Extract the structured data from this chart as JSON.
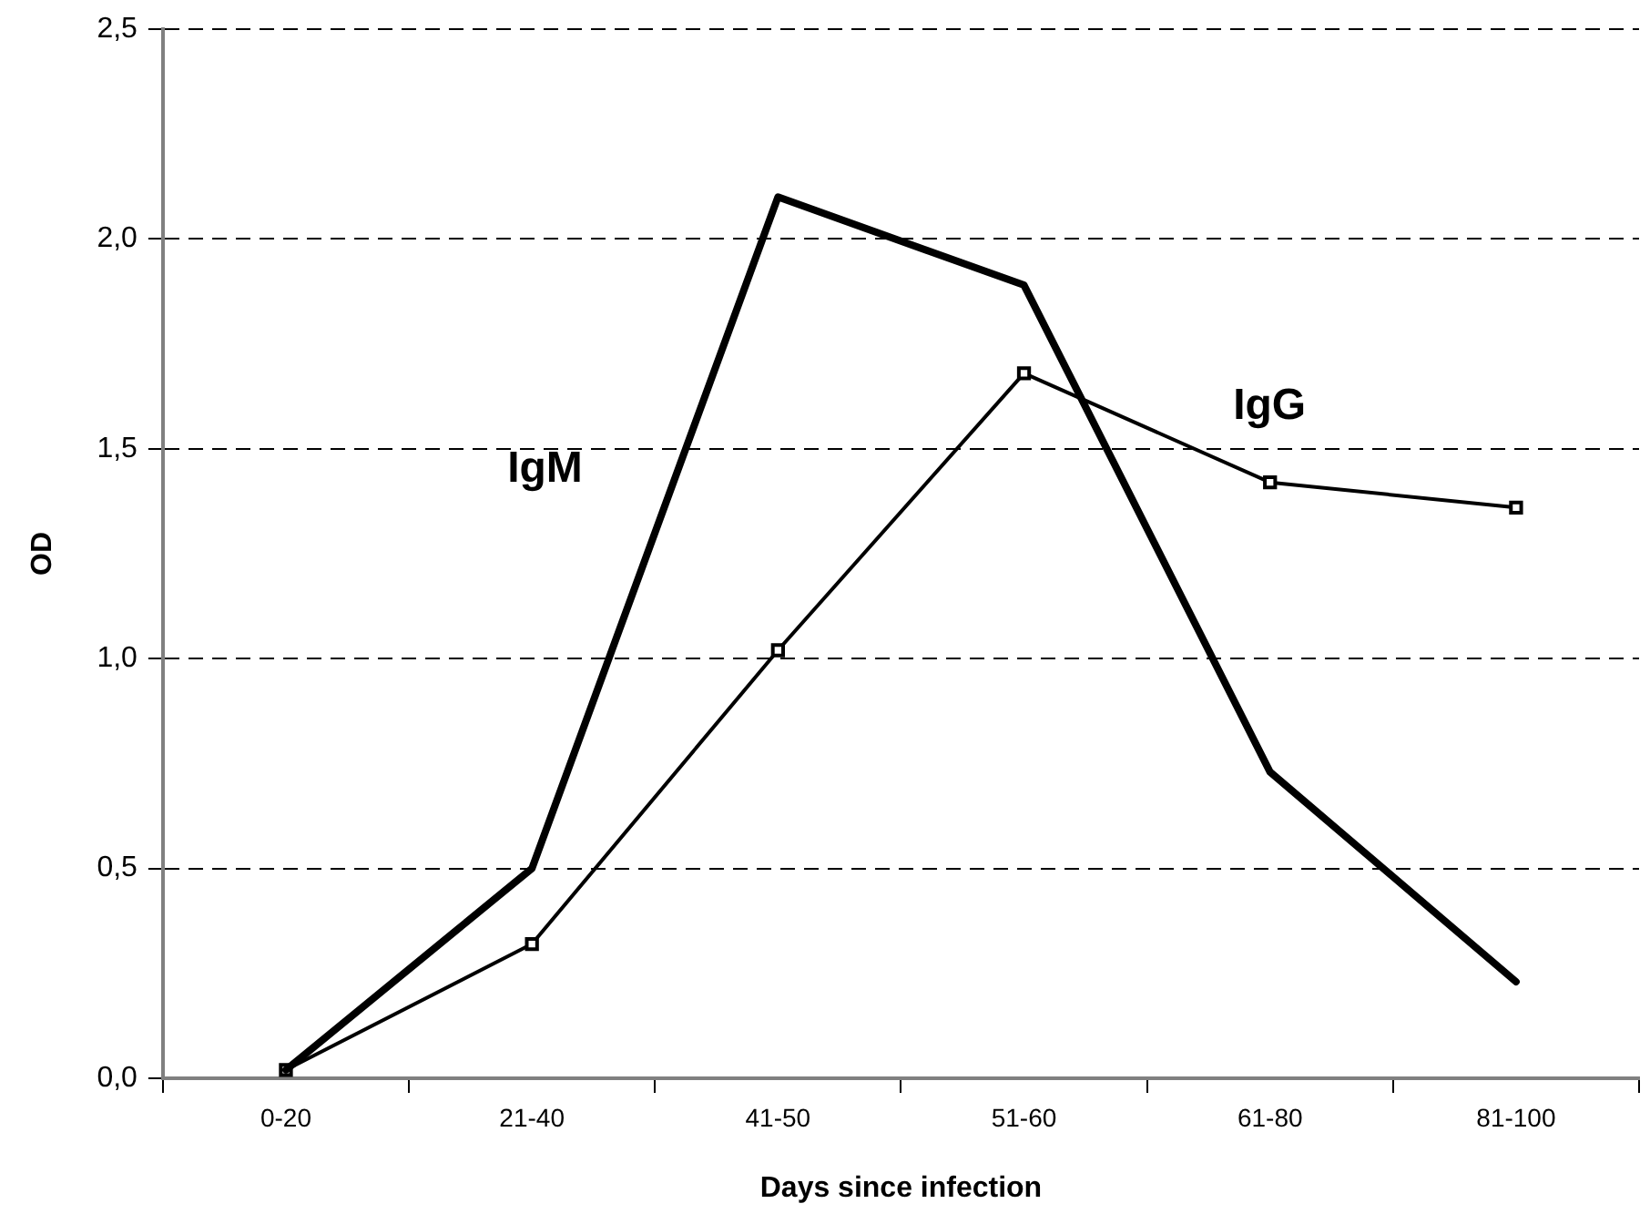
{
  "chart_data": {
    "type": "line",
    "xlabel": "Days since infection",
    "ylabel": "OD",
    "categories": [
      "0-20",
      "21-40",
      "41-50",
      "51-60",
      "61-80",
      "81-100"
    ],
    "series": [
      {
        "name": "IgM",
        "color": "#000000",
        "values": [
          0.02,
          0.5,
          2.1,
          1.89,
          0.73,
          0.23
        ],
        "marker": "none"
      },
      {
        "name": "IgG",
        "color": "#000000",
        "values": [
          0.02,
          0.32,
          1.02,
          1.68,
          1.42,
          1.36
        ],
        "marker": "square"
      }
    ],
    "ylim": [
      0,
      2.5
    ],
    "yticks": [
      {
        "value": 0,
        "label": "0,0"
      },
      {
        "value": 0.5,
        "label": "0,5"
      },
      {
        "value": 1,
        "label": "1,0"
      },
      {
        "value": 1.5,
        "label": "1,5"
      },
      {
        "value": 2,
        "label": "2,0"
      },
      {
        "value": 2.5,
        "label": "2,5"
      }
    ],
    "grid": "y",
    "legend": false,
    "line_style": "solid"
  }
}
